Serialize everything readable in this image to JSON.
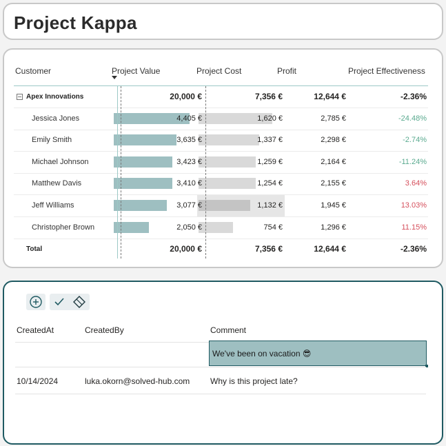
{
  "page": {
    "title": "Project Kappa"
  },
  "matrix": {
    "headers": [
      "Customer",
      "Project Value",
      "Project Cost",
      "Profit",
      "Project Effectiveness"
    ],
    "group": {
      "name": "Apex Innovations",
      "value": "20,000 €",
      "cost": "7,356 €",
      "profit": "12,644 €",
      "effectiveness": "-2.36%"
    },
    "rows": [
      {
        "name": "Jessica Jones",
        "value": "4,405 €",
        "cost": "1,620 €",
        "profit": "2,785 €",
        "effectiveness": "-24.48%",
        "value_fraction": 0.932,
        "cost_fraction": 0.906
      },
      {
        "name": "Emily Smith",
        "value": "3,635 €",
        "cost": "1,337 €",
        "profit": "2,298 €",
        "effectiveness": "-2.74%",
        "value_fraction": 0.769,
        "cost_fraction": 0.748
      },
      {
        "name": "Michael Johnson",
        "value": "3,423 €",
        "cost": "1,259 €",
        "profit": "2,164 €",
        "effectiveness": "-11.24%",
        "value_fraction": 0.724,
        "cost_fraction": 0.704
      },
      {
        "name": "Matthew Davis",
        "value": "3,410 €",
        "cost": "1,254 €",
        "profit": "2,155 €",
        "effectiveness": "3.64%",
        "value_fraction": 0.721,
        "cost_fraction": 0.702
      },
      {
        "name": "Jeff Williams",
        "value": "3,077 €",
        "cost": "1,132 €",
        "profit": "1,945 €",
        "effectiveness": "13.03%",
        "value_fraction": 0.651,
        "cost_fraction": 0.633
      },
      {
        "name": "Christopher Brown",
        "value": "2,050 €",
        "cost": "754 €",
        "profit": "1,296 €",
        "effectiveness": "11.15%",
        "value_fraction": 0.434,
        "cost_fraction": 0.422
      }
    ],
    "total": {
      "name": "Total",
      "value": "20,000 €",
      "cost": "7,356 €",
      "profit": "12,644 €",
      "effectiveness": "-2.36%"
    },
    "colors": {
      "value_bar": "#9ebfc1",
      "cost_bar": "#d9d9d9",
      "positive": "#5aaa8f",
      "negative": "#d54e5b"
    }
  },
  "comments": {
    "toolbar": {
      "add_icon": "plus-circle-icon",
      "confirm_icon": "checkmark-icon",
      "clear_icon": "eraser-icon"
    },
    "headers": [
      "CreatedAt",
      "CreatedBy",
      "Comment"
    ],
    "edit_row": {
      "comment": "We've been on vacation 😎"
    },
    "rows": [
      {
        "created_at": "10/14/2024",
        "created_by": "luka.okorn@solved-hub.com",
        "comment": "Why is this project late?"
      }
    ],
    "accent": "#1f5a62"
  }
}
